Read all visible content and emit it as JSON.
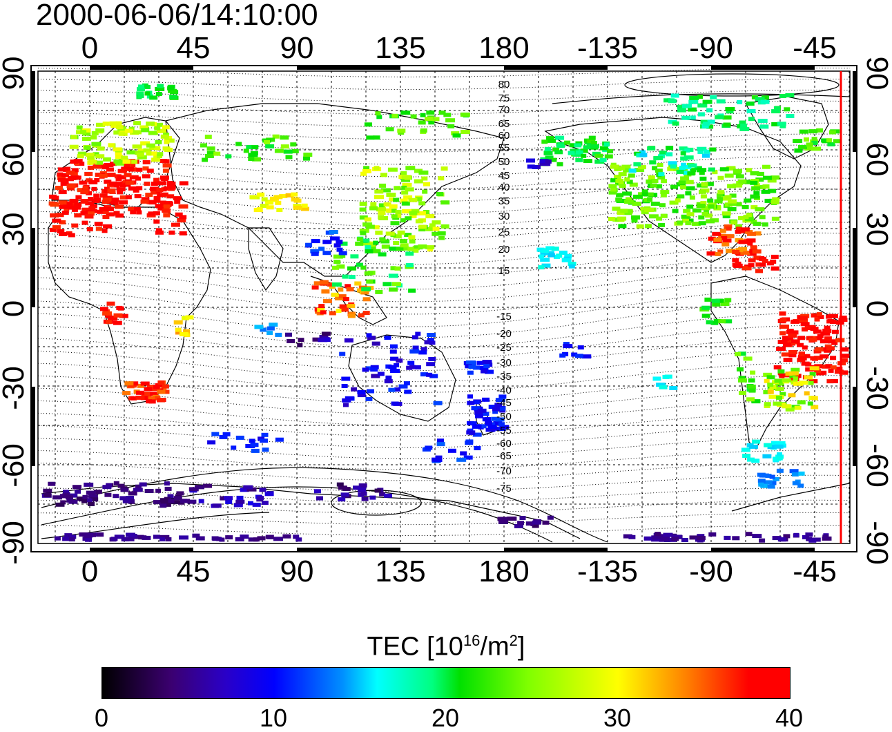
{
  "title": "2000-06-06/14:10:00",
  "map": {
    "top_lon_ticks": [
      "0",
      "45",
      "90",
      "135",
      "180",
      "-135",
      "-90",
      "-45"
    ],
    "bottom_lon_ticks": [
      "0",
      "45",
      "90",
      "135",
      "180",
      "-135",
      "-90",
      "-45"
    ],
    "left_lat_ticks": [
      "90",
      "60",
      "30",
      "0",
      "-30",
      "-60",
      "-90"
    ],
    "right_lat_ticks": [
      "90",
      "60",
      "30",
      "0",
      "-30",
      "-60",
      "-90"
    ],
    "contour_labels": [
      "80",
      "75",
      "70",
      "65",
      "60",
      "55",
      "50",
      "45",
      "40",
      "35",
      "30",
      "25",
      "20",
      "15",
      "-15",
      "-20",
      "-25",
      "-30",
      "-35",
      "-40",
      "-45",
      "-50",
      "-55",
      "-60",
      "-65",
      "-70",
      "-75"
    ],
    "terminator_color": "#ff0000"
  },
  "colorbar": {
    "title_prefix": "TEC  [10",
    "title_exp1": "16",
    "title_mid": "/m",
    "title_exp2": "2",
    "title_suffix": "]",
    "labels": [
      "0",
      "10",
      "20",
      "30",
      "40"
    ],
    "min": 0,
    "max": 40
  },
  "colors": {
    "high": "#ff0000",
    "mid_high": "#ffff00",
    "mid": "#00ff00",
    "mid_low": "#00ffff",
    "low": "#0000ff",
    "lowest": "#3b0070"
  }
}
